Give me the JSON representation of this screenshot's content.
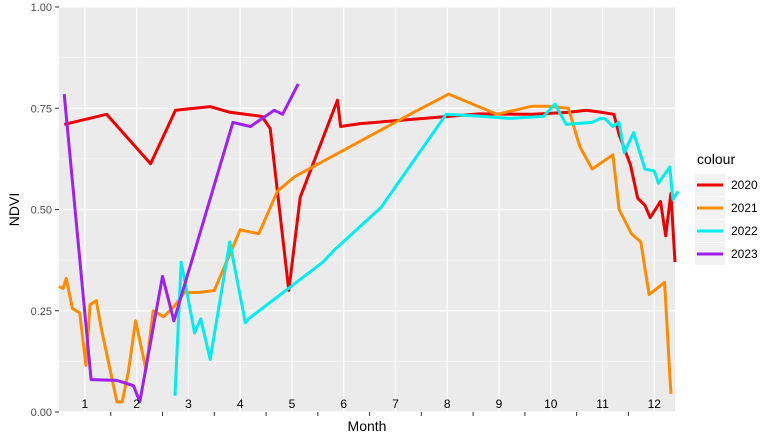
{
  "chart_data": {
    "type": "line",
    "xlabel": "Month",
    "ylabel": "NDVI",
    "xlim": [
      0.5,
      12.4
    ],
    "ylim": [
      0,
      1
    ],
    "y_ticks": [
      "0.00",
      "0.25",
      "0.50",
      "0.75",
      "1.00"
    ],
    "y_tick_values": [
      0,
      0.25,
      0.5,
      0.75,
      1.0
    ],
    "month_labels": [
      "1",
      "2",
      "3",
      "4",
      "5",
      "6",
      "7",
      "8",
      "9",
      "10",
      "11",
      "12"
    ],
    "grid": true,
    "legend_title": "colour",
    "legend_position": "right",
    "series": [
      {
        "name": "2020",
        "color": "#ee0000",
        "x": [
          0.6,
          1.42,
          2.27,
          2.75,
          3.42,
          3.8,
          4.42,
          4.58,
          4.94,
          5.16,
          5.88,
          5.94,
          6.32,
          8.62,
          9.66,
          10.36,
          10.68,
          10.98,
          11.22,
          11.32,
          11.54,
          11.68,
          11.82,
          11.92,
          12.12,
          12.22,
          12.32,
          12.4
        ],
        "values": [
          0.71,
          0.735,
          0.613,
          0.745,
          0.754,
          0.74,
          0.73,
          0.7,
          0.3,
          0.53,
          0.77,
          0.705,
          0.712,
          0.736,
          0.735,
          0.74,
          0.745,
          0.74,
          0.735,
          0.685,
          0.61,
          0.528,
          0.51,
          0.48,
          0.52,
          0.435,
          0.54,
          0.37
        ]
      },
      {
        "name": "2021",
        "color": "#ff8c00",
        "x": [
          0.5,
          0.58,
          0.64,
          0.76,
          0.9,
          1.02,
          1.1,
          1.22,
          1.32,
          1.62,
          1.72,
          1.84,
          1.98,
          2.18,
          2.32,
          2.52,
          2.72,
          2.92,
          3.2,
          3.5,
          4.0,
          4.36,
          4.72,
          5.04,
          7.28,
          8.03,
          8.96,
          9.64,
          9.96,
          10.34,
          10.56,
          10.8,
          11.2,
          11.32,
          11.56,
          11.74,
          11.9,
          12.2,
          12.32
        ],
        "values": [
          0.31,
          0.305,
          0.33,
          0.255,
          0.245,
          0.115,
          0.265,
          0.275,
          0.205,
          0.025,
          0.025,
          0.1,
          0.225,
          0.105,
          0.25,
          0.235,
          0.26,
          0.295,
          0.295,
          0.3,
          0.45,
          0.44,
          0.545,
          0.58,
          0.735,
          0.785,
          0.735,
          0.755,
          0.755,
          0.75,
          0.655,
          0.6,
          0.635,
          0.5,
          0.44,
          0.42,
          0.29,
          0.32,
          0.045
        ]
      },
      {
        "name": "2022",
        "color": "#00eeee",
        "x": [
          2.74,
          2.86,
          3.12,
          3.24,
          3.42,
          3.8,
          4.1,
          4.16,
          5.6,
          5.82,
          6.72,
          7.98,
          8.68,
          9.2,
          9.86,
          10.08,
          10.3,
          10.8,
          10.96,
          11.04,
          11.2,
          11.32,
          11.42,
          11.6,
          11.82,
          12.0,
          12.08,
          12.3,
          12.36,
          12.46
        ],
        "values": [
          0.04,
          0.37,
          0.195,
          0.23,
          0.13,
          0.42,
          0.22,
          0.23,
          0.37,
          0.4,
          0.505,
          0.735,
          0.73,
          0.725,
          0.73,
          0.76,
          0.71,
          0.715,
          0.725,
          0.725,
          0.705,
          0.715,
          0.64,
          0.69,
          0.6,
          0.595,
          0.565,
          0.605,
          0.525,
          0.545
        ]
      },
      {
        "name": "2023",
        "color": "#a020f0",
        "x": [
          0.6,
          1.12,
          1.62,
          1.94,
          2.06,
          2.5,
          2.72,
          3.86,
          4.2,
          4.66,
          4.82,
          5.12
        ],
        "values": [
          0.785,
          0.08,
          0.078,
          0.065,
          0.025,
          0.335,
          0.225,
          0.715,
          0.705,
          0.745,
          0.735,
          0.81
        ]
      }
    ]
  }
}
